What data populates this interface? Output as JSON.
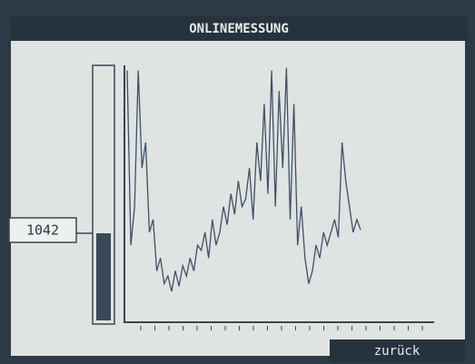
{
  "header": {
    "title": "ONLINEMESSUNG"
  },
  "gauge": {
    "label": "1042"
  },
  "chart_data": {
    "type": "line",
    "color": "#3f5166",
    "ylim": [
      0,
      100
    ],
    "values": [
      98,
      30,
      45,
      98,
      60,
      70,
      35,
      40,
      20,
      25,
      15,
      18,
      12,
      20,
      14,
      22,
      18,
      25,
      20,
      30,
      28,
      35,
      25,
      40,
      30,
      35,
      45,
      38,
      50,
      42,
      55,
      45,
      48,
      60,
      40,
      70,
      55,
      85,
      50,
      98,
      45,
      90,
      60,
      99,
      40,
      85,
      30,
      45,
      25,
      15,
      20,
      30,
      25,
      35,
      30,
      35,
      40,
      33,
      70,
      55,
      45,
      35,
      40,
      36
    ]
  },
  "footer": {
    "button": "zurück"
  }
}
